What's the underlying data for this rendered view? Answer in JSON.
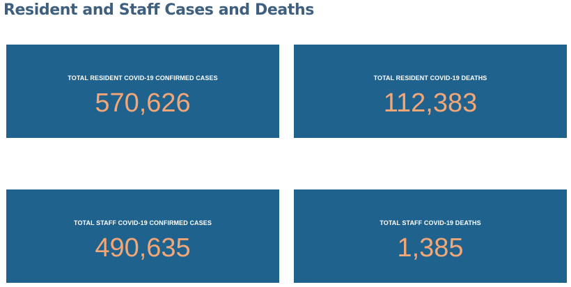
{
  "page": {
    "title": "Resident and Staff Cases and Deaths"
  },
  "colors": {
    "title": "#3f5f7f",
    "card_background": "#1f628e",
    "label_text": "#ffffff",
    "value_text": "#f3a777"
  },
  "cards": [
    {
      "label": "TOTAL RESIDENT COVID-19 CONFIRMED CASES",
      "value": "570,626"
    },
    {
      "label": "TOTAL RESIDENT COVID-19 DEATHS",
      "value": "112,383"
    },
    {
      "label": "TOTAL STAFF COVID-19 CONFIRMED CASES",
      "value": "490,635"
    },
    {
      "label": "TOTAL STAFF COVID-19 DEATHS",
      "value": "1,385"
    }
  ]
}
